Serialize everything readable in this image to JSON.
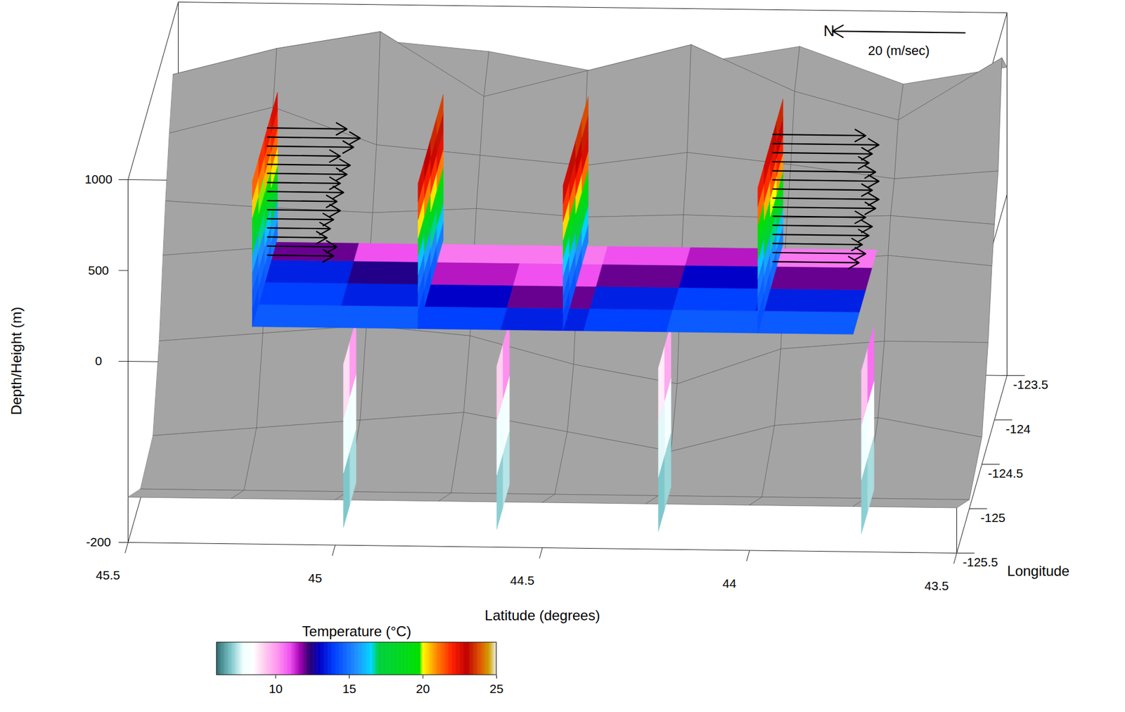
{
  "chart_data": {
    "type": "3d",
    "x_label": "Latitude (degrees)",
    "y_label": "Longitude",
    "z_label": "Depth/Height (m)",
    "xlim": [
      45.5,
      43.5
    ],
    "xticks": [
      45.5,
      45,
      44.5,
      44,
      43.5
    ],
    "ylim": [
      -125.5,
      -123.5
    ],
    "yticks": [
      -123.5,
      -124,
      -124.5,
      -125,
      -125.5
    ],
    "zlim": [
      -200,
      1000
    ],
    "zticks": [
      -200,
      0,
      500,
      1000
    ],
    "colorbar": {
      "label": "Temperature (°C)",
      "range": [
        6,
        25
      ],
      "ticks": [
        10,
        15,
        20,
        25
      ],
      "stops": [
        {
          "value": 6,
          "color": "#2f6f73"
        },
        {
          "value": 7,
          "color": "#7ec8cc"
        },
        {
          "value": 7.8,
          "color": "#f0ffff"
        },
        {
          "value": 8.5,
          "color": "#ffffff"
        },
        {
          "value": 9.2,
          "color": "#ffd0f0"
        },
        {
          "value": 10.2,
          "color": "#ff90f0"
        },
        {
          "value": 11,
          "color": "#f050f0"
        },
        {
          "value": 11.7,
          "color": "#a000b0"
        },
        {
          "value": 12.3,
          "color": "#300070"
        },
        {
          "value": 13,
          "color": "#0000c8"
        },
        {
          "value": 14,
          "color": "#0040ff"
        },
        {
          "value": 15.5,
          "color": "#2090ff"
        },
        {
          "value": 16.5,
          "color": "#00d8ff"
        },
        {
          "value": 17,
          "color": "#00d040"
        },
        {
          "value": 19.8,
          "color": "#00e000"
        },
        {
          "value": 20,
          "color": "#ffff00"
        },
        {
          "value": 21,
          "color": "#ff8000"
        },
        {
          "value": 22,
          "color": "#ff2000"
        },
        {
          "value": 23,
          "color": "#c00000"
        },
        {
          "value": 24,
          "color": "#e06000"
        },
        {
          "value": 24.5,
          "color": "#d0a000"
        },
        {
          "value": 25,
          "color": "#f0f0f0"
        }
      ]
    },
    "wind_scale": {
      "label": "N",
      "speed": 20,
      "text": "20 (m/sec)"
    },
    "terrain": {
      "latitude": [
        45.5,
        45.25,
        45,
        44.75,
        44.5,
        44.25,
        44,
        43.75,
        43.5
      ],
      "longitude": [
        -125.5,
        -125,
        -124.5,
        -124.25,
        -124.1,
        -124,
        -123.85,
        -123.7,
        -123.5
      ],
      "elevation": [
        [
          -150,
          -150,
          -150,
          -150,
          -150,
          -150,
          -150,
          -150,
          -150
        ],
        [
          -190,
          -190,
          -190,
          -190,
          -190,
          -190,
          -190,
          -190,
          -190
        ],
        [
          -180,
          -170,
          -160,
          -150,
          -170,
          -190,
          -160,
          -150,
          -170
        ],
        [
          -100,
          -90,
          -80,
          -90,
          -120,
          -140,
          -100,
          -90,
          -90
        ],
        [
          -20,
          -10,
          -10,
          -20,
          -40,
          -30,
          -20,
          -10,
          -20
        ],
        [
          150,
          120,
          100,
          130,
          90,
          110,
          100,
          120,
          80
        ],
        [
          450,
          600,
          400,
          350,
          300,
          380,
          320,
          250,
          300
        ],
        [
          700,
          850,
          950,
          600,
          750,
          900,
          650,
          500,
          850
        ],
        [
          600,
          700,
          800,
          750,
          650,
          700,
          800,
          600,
          700
        ]
      ]
    },
    "ocean_slices": [
      {
        "latitude": 44.98,
        "longitude": [
          -125.5,
          -125.25,
          -125
        ],
        "depth": [
          -180,
          -120,
          -60,
          0
        ],
        "temperature": [
          [
            7.0,
            7.3
          ],
          [
            7.8,
            8.0
          ],
          [
            9.0,
            10.0
          ]
        ]
      },
      {
        "latitude": 44.61,
        "longitude": [
          -125.5,
          -125.25,
          -125
        ],
        "depth": [
          -180,
          -120,
          -60,
          0
        ],
        "temperature": [
          [
            7.1,
            7.4
          ],
          [
            7.9,
            8.1
          ],
          [
            9.2,
            10.2
          ]
        ]
      },
      {
        "latitude": 44.22,
        "longitude": [
          -125.5,
          -125.25,
          -125
        ],
        "depth": [
          -180,
          -120,
          -60,
          0
        ],
        "temperature": [
          [
            7.0,
            7.2
          ],
          [
            7.7,
            8.0
          ],
          [
            8.8,
            9.8
          ]
        ]
      },
      {
        "latitude": 43.73,
        "longitude": [
          -125.5,
          -125.25,
          -125
        ],
        "depth": [
          -180,
          -120,
          -60,
          0
        ],
        "temperature": [
          [
            7.1,
            7.3
          ],
          [
            7.8,
            8.2
          ],
          [
            9.4,
            10.6
          ]
        ]
      }
    ],
    "horizontal_slice": {
      "height": 200,
      "latitude": [
        45.2,
        45.0,
        44.8,
        44.6,
        44.4,
        44.2,
        44.0,
        43.75
      ],
      "longitude": [
        -125.5,
        -125.25,
        -125,
        -124.75,
        -124.55
      ],
      "temperature": [
        [
          14.5,
          14,
          13.5,
          12
        ],
        [
          14.5,
          13.5,
          12.5,
          11
        ],
        [
          14,
          13,
          11.5,
          10.5
        ],
        [
          13.5,
          12,
          11,
          10.5
        ],
        [
          14,
          13.5,
          12,
          11
        ],
        [
          14.5,
          14,
          13,
          11.5
        ],
        [
          14.5,
          13.5,
          12,
          10.5
        ]
      ]
    },
    "vertical_slices": [
      {
        "latitude": 45.2,
        "longitude": [
          -125.5,
          -125.25,
          -125,
          -124.75,
          -124.5
        ],
        "height": [
          200,
          300,
          400,
          500,
          600,
          700,
          800,
          900,
          1000
        ],
        "temperature": [
          [
            14.2,
            14.4,
            14.6,
            15.0
          ],
          [
            14.5,
            14.8,
            15.2,
            15.8
          ],
          [
            14.9,
            15.4,
            16.2,
            17.2
          ],
          [
            15.8,
            16.8,
            18.0,
            19.0
          ],
          [
            17.6,
            18.6,
            19.4,
            20.2
          ],
          [
            19.2,
            19.9,
            20.6,
            21.2
          ],
          [
            20.4,
            21.0,
            21.5,
            22.0
          ],
          [
            21.3,
            21.8,
            22.2,
            22.6
          ]
        ]
      },
      {
        "latitude": 44.8,
        "longitude": [
          -125.5,
          -125.25,
          -125,
          -124.75,
          -124.5
        ],
        "height": [
          200,
          300,
          400,
          500,
          600,
          700,
          800,
          900,
          1000
        ],
        "temperature": [
          [
            14.0,
            14.3,
            14.6,
            15.1
          ],
          [
            14.4,
            14.8,
            15.4,
            16.2
          ],
          [
            15.0,
            15.8,
            16.8,
            17.8
          ],
          [
            16.2,
            17.4,
            18.6,
            19.6
          ],
          [
            18.2,
            19.2,
            20.2,
            21.0
          ],
          [
            20.2,
            21.0,
            21.8,
            22.4
          ],
          [
            21.6,
            22.2,
            22.8,
            23.2
          ],
          [
            22.6,
            23.0,
            23.4,
            23.7
          ]
        ]
      },
      {
        "latitude": 44.45,
        "longitude": [
          -125.5,
          -125.25,
          -125,
          -124.75,
          -124.5
        ],
        "height": [
          200,
          300,
          400,
          500,
          600,
          700,
          800,
          900,
          1000
        ],
        "temperature": [
          [
            14.1,
            14.4,
            14.7,
            15.2
          ],
          [
            14.5,
            14.9,
            15.5,
            16.4
          ],
          [
            15.1,
            16.0,
            17.0,
            18.0
          ],
          [
            16.4,
            17.6,
            18.8,
            19.8
          ],
          [
            18.4,
            19.4,
            20.3,
            21.2
          ],
          [
            20.3,
            21.2,
            22.0,
            22.6
          ],
          [
            21.8,
            22.4,
            22.9,
            23.3
          ],
          [
            22.7,
            23.1,
            23.5,
            23.8
          ]
        ]
      },
      {
        "latitude": 43.98,
        "longitude": [
          -125.5,
          -125.25,
          -125,
          -124.75,
          -124.5
        ],
        "height": [
          200,
          300,
          400,
          500,
          600,
          700,
          800,
          900,
          1000
        ],
        "temperature": [
          [
            14.3,
            14.5,
            14.8,
            15.2
          ],
          [
            14.6,
            15.0,
            15.5,
            16.2
          ],
          [
            15.1,
            15.8,
            16.8,
            17.8
          ],
          [
            16.2,
            17.4,
            18.6,
            19.6
          ],
          [
            18.0,
            19.0,
            20.0,
            20.8
          ],
          [
            19.8,
            20.6,
            21.4,
            22.0
          ],
          [
            21.2,
            21.9,
            22.4,
            22.9
          ],
          [
            22.2,
            22.7,
            23.1,
            23.4
          ]
        ]
      }
    ],
    "wind": [
      {
        "latitude": 45.2,
        "longitude": -124.9,
        "height": [
          300,
          350,
          400,
          450,
          500,
          550,
          600,
          650,
          700,
          750,
          800,
          850,
          900,
          950,
          1000
        ],
        "speed": [
          10,
          10.5,
          9,
          9.5,
          10,
          11,
          10.5,
          11.5,
          11,
          12,
          12.5,
          11,
          13,
          14,
          12
        ]
      },
      {
        "latitude": 43.98,
        "longitude": -124.9,
        "height": [
          300,
          350,
          400,
          450,
          500,
          550,
          600,
          650,
          700,
          750,
          800,
          850,
          900,
          950,
          1000
        ],
        "speed": [
          13,
          14,
          13.5,
          14.5,
          15,
          14,
          15.5,
          16,
          15,
          16,
          15.5,
          14.5,
          15,
          16,
          14
        ]
      }
    ]
  }
}
